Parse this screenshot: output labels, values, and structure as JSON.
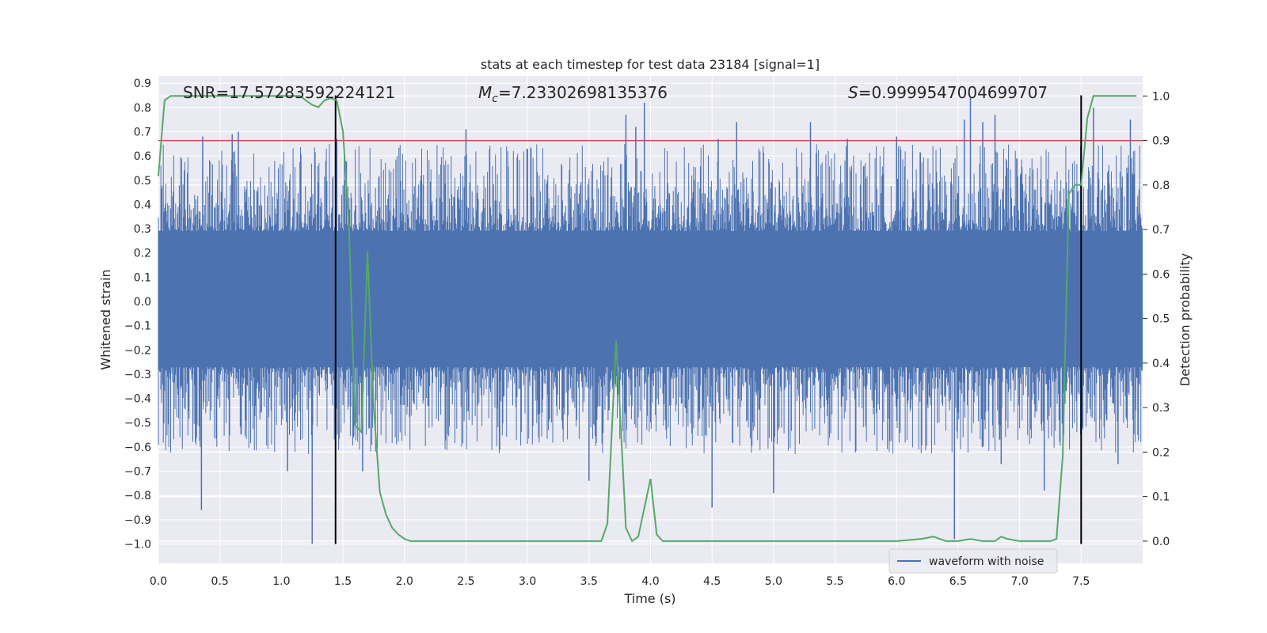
{
  "chart_data": {
    "type": "line",
    "title": "stats at each timestep for test data 23184 [signal=1]",
    "xlabel": "Time (s)",
    "ylabel_left": "Whitened strain",
    "ylabel_right": "Detection probability",
    "xlim": [
      0.0,
      8.0
    ],
    "ylim_left": [
      -1.08,
      0.93
    ],
    "ylim_right": [
      -0.05,
      1.045
    ],
    "x_ticks": [
      0.0,
      0.5,
      1.0,
      1.5,
      2.0,
      2.5,
      3.0,
      3.5,
      4.0,
      4.5,
      5.0,
      5.5,
      6.0,
      6.5,
      7.0,
      7.5
    ],
    "y_left_ticks": [
      -1.0,
      -0.9,
      -0.8,
      -0.7,
      -0.6,
      -0.5,
      -0.4,
      -0.3,
      -0.2,
      -0.1,
      0.0,
      0.1,
      0.2,
      0.3,
      0.4,
      0.5,
      0.6,
      0.7,
      0.8,
      0.9
    ],
    "y_right_ticks": [
      0.0,
      0.1,
      0.2,
      0.3,
      0.4,
      0.5,
      0.6,
      0.7,
      0.8,
      0.9,
      1.0
    ],
    "grid": true,
    "annotations": {
      "snr": "SNR=17.57283592224121",
      "mc": "=7.23302698135376",
      "s": "=0.9999547004699707"
    },
    "threshold": {
      "value": 0.9,
      "axis": "right",
      "color": "#c44e52"
    },
    "vlines": {
      "x": [
        1.44,
        7.5
      ],
      "color": "#000000",
      "ymin": -1.0,
      "ymax": 0.85
    },
    "series": [
      {
        "name": "waveform with noise",
        "axis": "left",
        "color": "#4c72b0",
        "description_values": {
          "duration_s": 8.0,
          "core_band": [
            -0.27,
            0.29
          ],
          "envelope": [
            -1.0,
            0.84
          ]
        },
        "peaks": [
          [
            0.35,
            -0.86
          ],
          [
            0.36,
            0.68
          ],
          [
            0.6,
            0.69
          ],
          [
            0.65,
            0.7
          ],
          [
            1.05,
            -0.7
          ],
          [
            1.25,
            -1.0
          ],
          [
            1.45,
            0.67
          ],
          [
            1.66,
            -0.7
          ],
          [
            2.5,
            0.71
          ],
          [
            3.0,
            0.63
          ],
          [
            3.5,
            -0.74
          ],
          [
            3.8,
            0.77
          ],
          [
            3.88,
            0.72
          ],
          [
            3.95,
            0.82
          ],
          [
            4.5,
            -0.85
          ],
          [
            4.55,
            0.67
          ],
          [
            4.7,
            0.74
          ],
          [
            5.0,
            -0.79
          ],
          [
            5.3,
            0.74
          ],
          [
            5.6,
            0.67
          ],
          [
            6.0,
            0.68
          ],
          [
            6.47,
            -0.98
          ],
          [
            6.55,
            0.75
          ],
          [
            6.6,
            0.84
          ],
          [
            6.7,
            0.74
          ],
          [
            6.8,
            0.77
          ],
          [
            6.85,
            -0.67
          ],
          [
            7.2,
            -0.78
          ],
          [
            7.6,
            0.8
          ],
          [
            7.8,
            -0.67
          ],
          [
            7.9,
            0.75
          ]
        ]
      },
      {
        "name": "",
        "axis": "right",
        "color": "#55a868",
        "x": [
          0.0,
          0.05,
          0.1,
          0.2,
          0.4,
          0.6,
          0.8,
          1.0,
          1.15,
          1.25,
          1.3,
          1.35,
          1.4,
          1.45,
          1.5,
          1.55,
          1.6,
          1.65,
          1.7,
          1.75,
          1.8,
          1.85,
          1.9,
          1.95,
          2.0,
          2.05,
          2.1,
          2.2,
          2.3,
          2.4,
          2.6,
          2.8,
          3.0,
          3.2,
          3.4,
          3.6,
          3.65,
          3.72,
          3.75,
          3.8,
          3.85,
          3.9,
          4.0,
          4.05,
          4.1,
          4.2,
          4.5,
          5.0,
          5.5,
          6.0,
          6.2,
          6.3,
          6.35,
          6.4,
          6.5,
          6.6,
          6.7,
          6.8,
          6.85,
          6.9,
          7.0,
          7.1,
          7.25,
          7.3,
          7.35,
          7.4,
          7.45,
          7.5,
          7.55,
          7.6,
          7.7,
          7.8,
          7.95
        ],
        "y": [
          0.82,
          0.99,
          1.0,
          1.0,
          1.0,
          1.0,
          1.0,
          1.0,
          1.0,
          0.98,
          0.975,
          0.99,
          0.995,
          0.99,
          0.92,
          0.7,
          0.26,
          0.245,
          0.65,
          0.3,
          0.11,
          0.06,
          0.03,
          0.015,
          0.005,
          0.0,
          0.0,
          0.0,
          0.0,
          0.0,
          0.0,
          0.0,
          0.0,
          0.0,
          0.0,
          0.0,
          0.04,
          0.45,
          0.3,
          0.03,
          0.0,
          0.01,
          0.14,
          0.015,
          0.0,
          0.0,
          0.0,
          0.0,
          0.0,
          0.0,
          0.005,
          0.01,
          0.005,
          0.0,
          0.0,
          0.005,
          0.0,
          0.0,
          0.01,
          0.005,
          0.0,
          0.0,
          0.0,
          0.005,
          0.19,
          0.78,
          0.8,
          0.8,
          0.95,
          1.0,
          1.0,
          1.0,
          1.0
        ]
      }
    ],
    "legend": {
      "location": "bottom-right",
      "entries": [
        "waveform with noise"
      ]
    }
  }
}
